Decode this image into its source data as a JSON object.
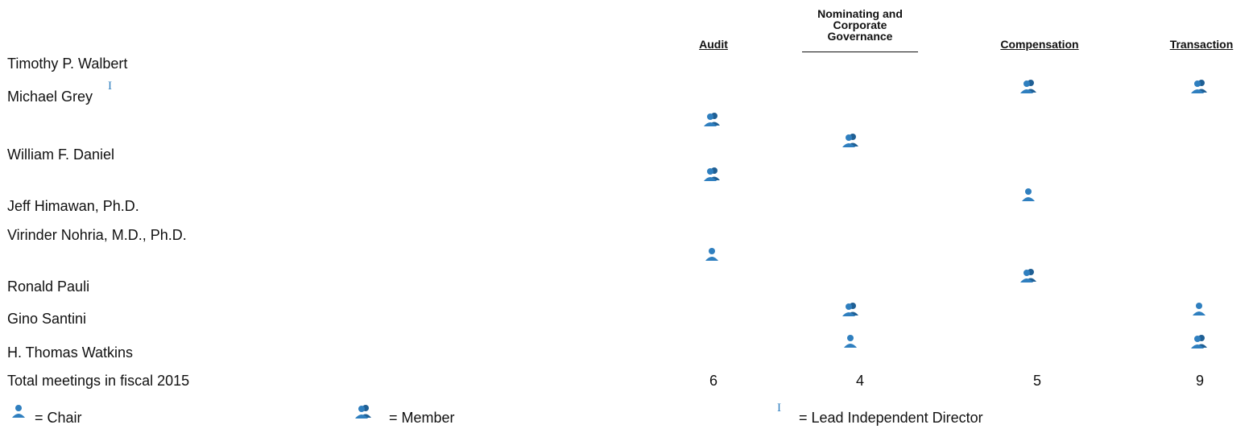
{
  "headers": {
    "audit": "Audit",
    "nominating_line1": "Nominating and",
    "nominating_line2": "Corporate",
    "nominating_line3": "Governance",
    "compensation": "Compensation",
    "transaction": "Transaction"
  },
  "directors": [
    {
      "name": "Timothy P. Walbert"
    },
    {
      "name": "Michael Grey",
      "lead_independent": true
    },
    {
      "name": "William F. Daniel"
    },
    {
      "name": "Jeff Himawan, Ph.D."
    },
    {
      "name": "Virinder Nohria, M.D., Ph.D."
    },
    {
      "name": "Ronald Pauli"
    },
    {
      "name": "Gino Santini"
    },
    {
      "name": "H. Thomas Watkins"
    }
  ],
  "lead_mark_glyph": "I",
  "totals": {
    "label": "Total meetings in fiscal 2015",
    "audit": "6",
    "nominating": "4",
    "compensation": "5",
    "transaction": "9"
  },
  "legend": {
    "chair": "= Chair",
    "member": "= Member",
    "lead": "= Lead Independent Director"
  },
  "colors": {
    "icon": "#2f7fbf",
    "icon_dark": "#1f5f94"
  }
}
